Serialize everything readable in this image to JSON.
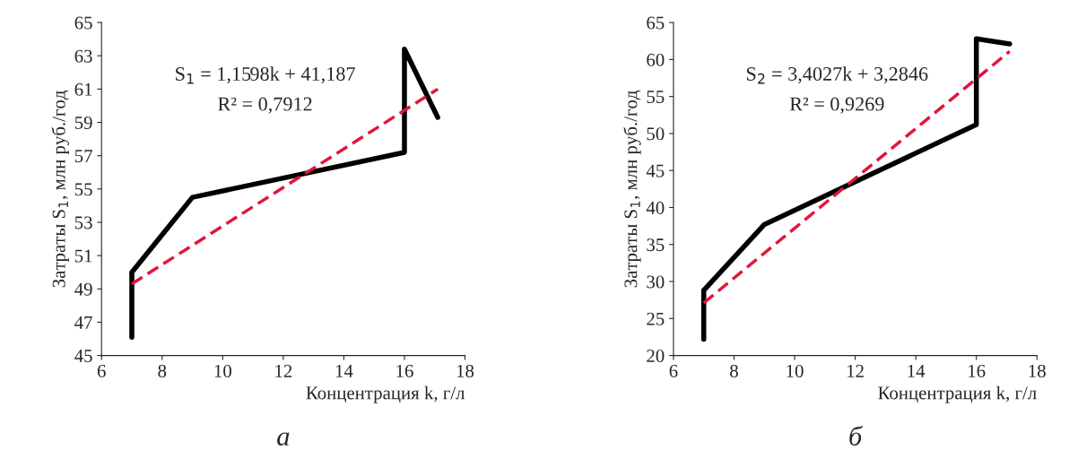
{
  "chart_data": [
    {
      "type": "line",
      "xlabel": "Концентрация k, г/л",
      "ylabel": "Затраты S$_{1}$, млн руб./год",
      "xlim": [
        6,
        18
      ],
      "xticks": [
        6,
        8,
        10,
        12,
        14,
        16,
        18
      ],
      "ylim": [
        45,
        65
      ],
      "yticks": [
        45,
        47,
        49,
        51,
        53,
        55,
        57,
        59,
        61,
        63,
        65
      ],
      "grid": false,
      "legend": false,
      "series": [
        {
          "color": "#000000",
          "line_style": "solid",
          "x": [
            7,
            7,
            9,
            16,
            16,
            17.1
          ],
          "values": [
            46.1,
            50.0,
            54.5,
            57.2,
            63.4,
            59.3
          ]
        },
        {
          "color": "#e0173a",
          "line_style": "dashed",
          "x": [
            7,
            17.1
          ],
          "values": [
            49.3,
            61.0
          ]
        }
      ],
      "annotations": [
        "S$_{1}$ = 1,1598k + 41,187",
        "R² = 0,7912",
        "а"
      ]
    },
    {
      "type": "line",
      "xlabel": "Концентрация k, г/л",
      "ylabel": "Затраты S$_{1}$, млн руб./год",
      "xlim": [
        6,
        18
      ],
      "xticks": [
        6,
        8,
        10,
        12,
        14,
        16,
        18
      ],
      "ylim": [
        20,
        65
      ],
      "yticks": [
        20,
        25,
        30,
        35,
        40,
        45,
        50,
        55,
        60,
        65
      ],
      "grid": false,
      "legend": false,
      "series": [
        {
          "color": "#000000",
          "line_style": "solid",
          "x": [
            7,
            7,
            9,
            16,
            16,
            17.1
          ],
          "values": [
            22.2,
            28.8,
            37.7,
            51.2,
            62.8,
            62.1
          ]
        },
        {
          "color": "#e0173a",
          "line_style": "dashed",
          "x": [
            7,
            17.1
          ],
          "values": [
            27.1,
            61.1
          ]
        }
      ],
      "annotations": [
        "S$_{2}$ = 3,4027k + 3,2846",
        "R² = 0,9269",
        "б"
      ]
    }
  ]
}
